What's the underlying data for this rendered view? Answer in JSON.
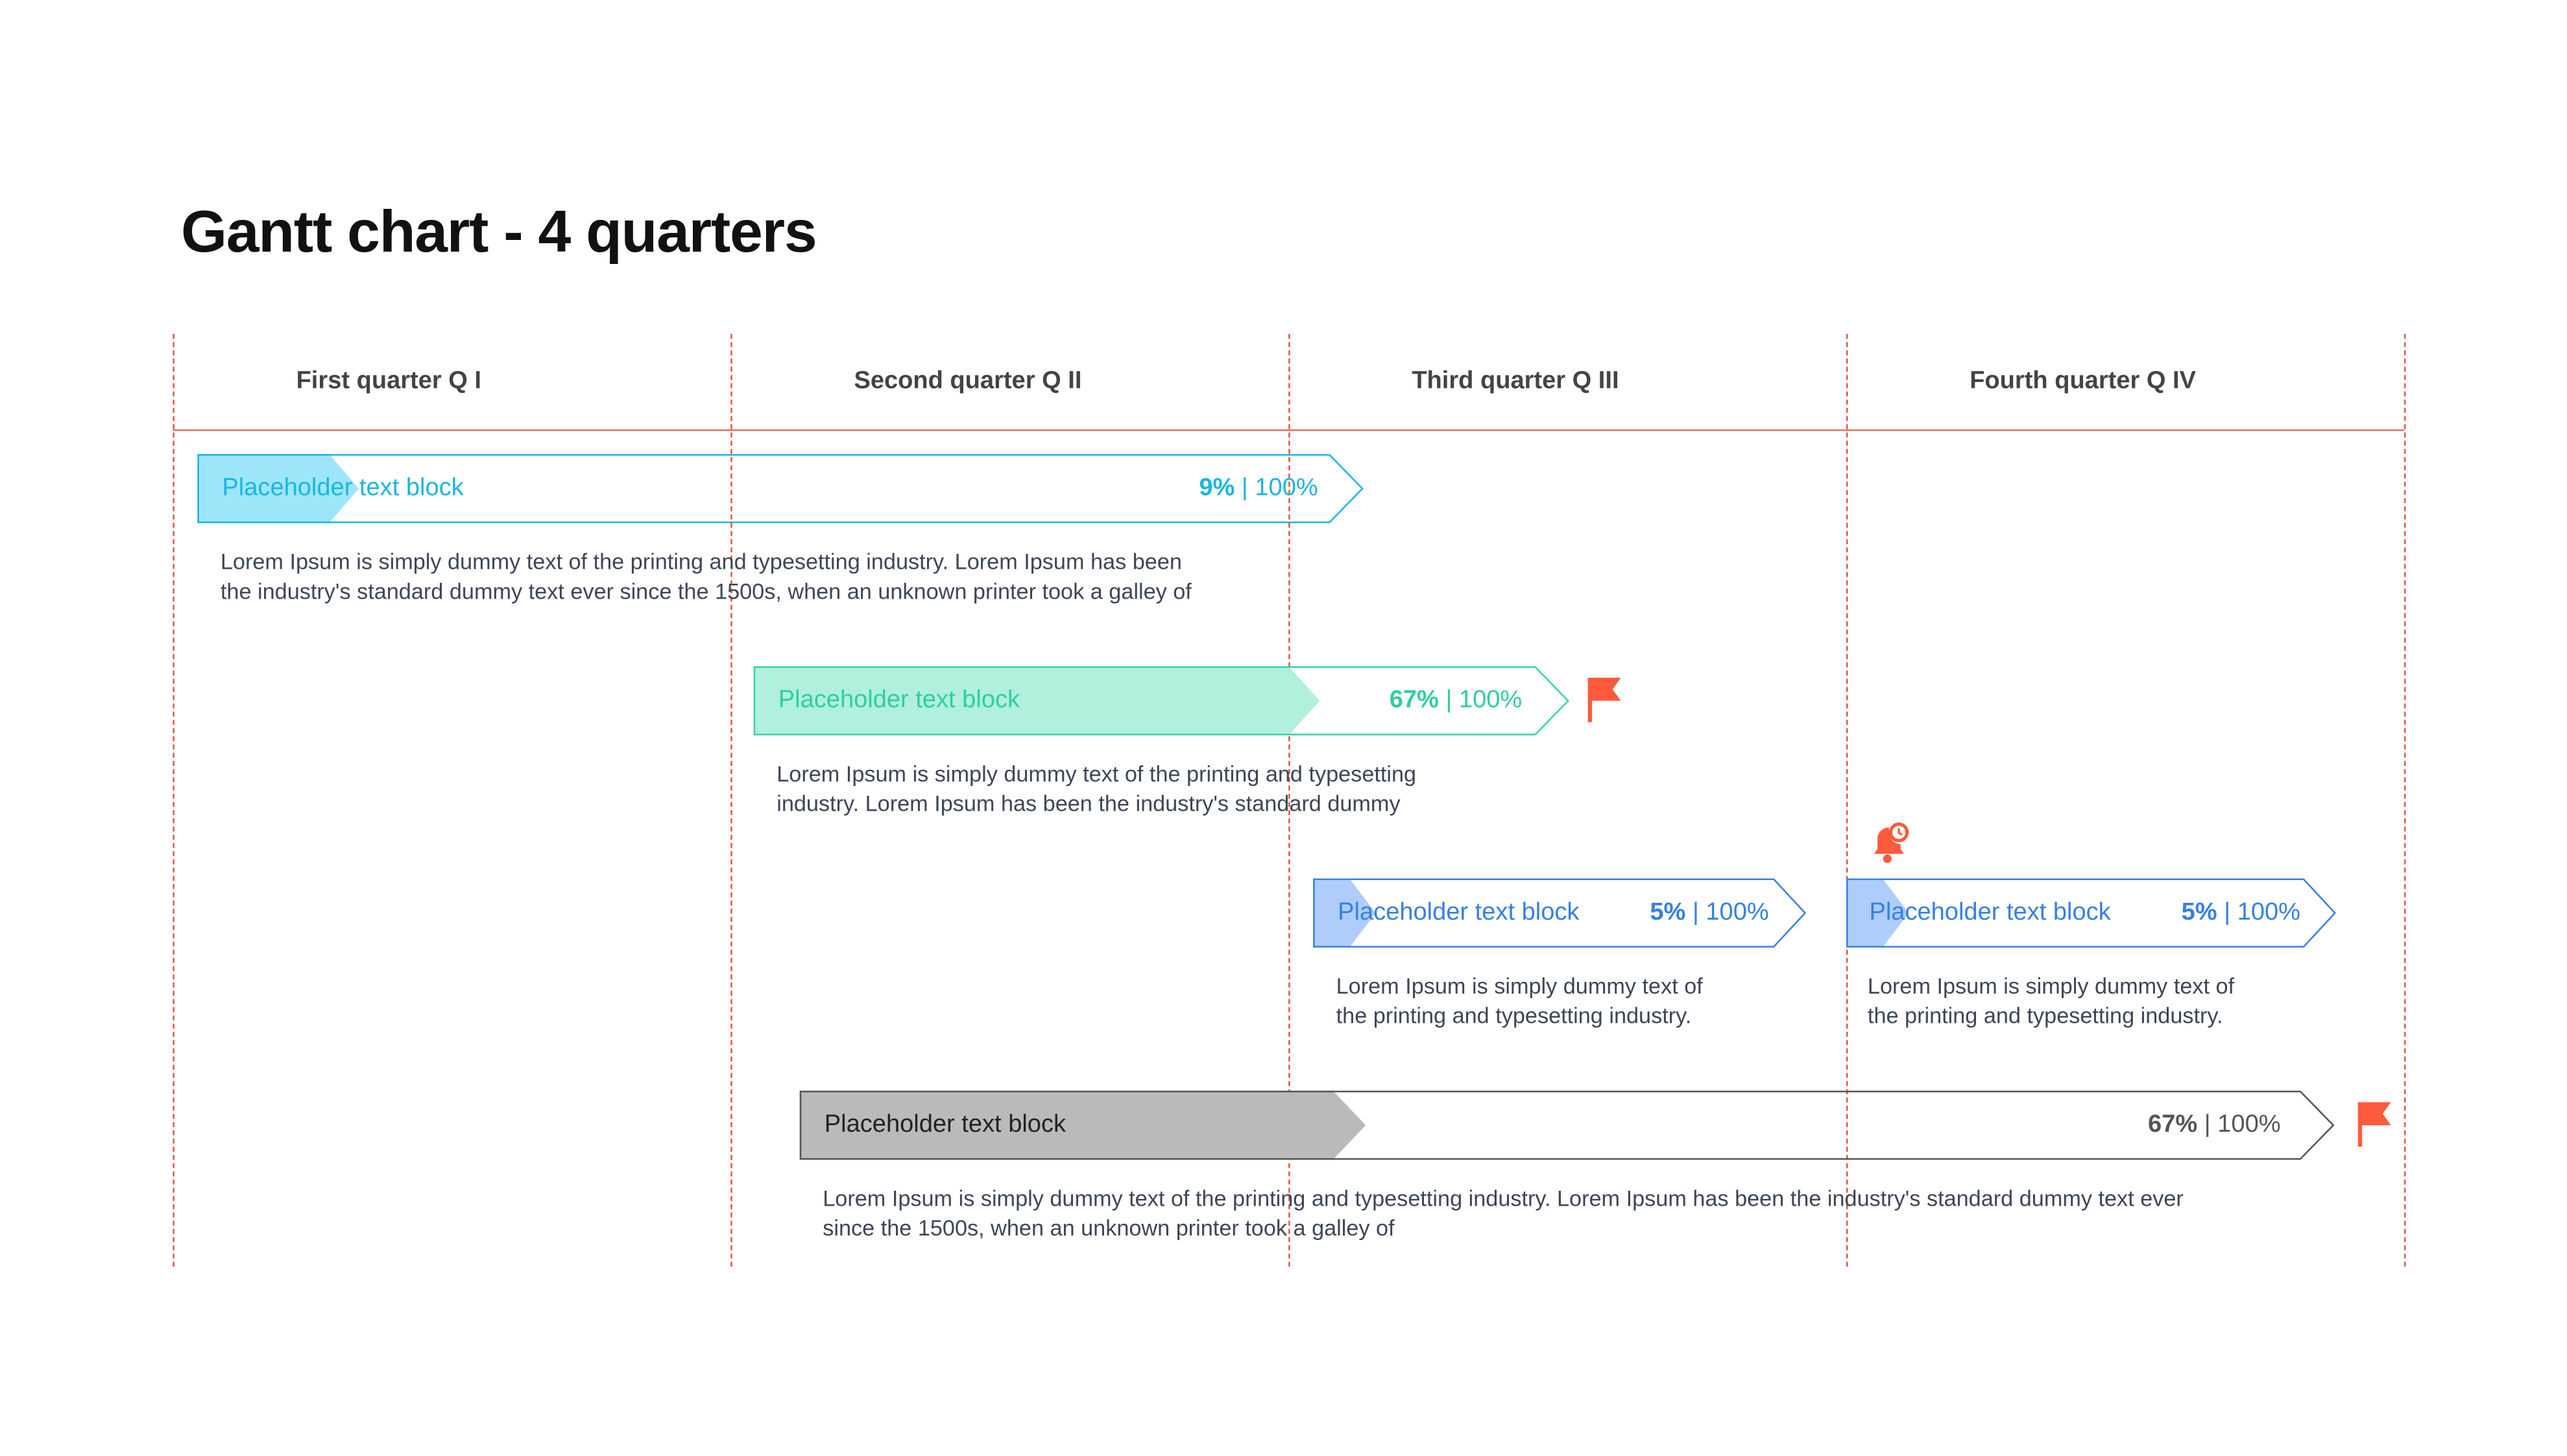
{
  "title": "Gantt chart - 4 quarters",
  "quarters": [
    {
      "label": "First quarter Q I"
    },
    {
      "label": "Second quarter Q II"
    },
    {
      "label": "Third quarter Q III"
    },
    {
      "label": "Fourth quarter Q IV"
    }
  ],
  "colors": {
    "divider": "#e8553f",
    "header_line": "#d9775f",
    "cyan": "#1ab6e0",
    "green": "#2fcf9d",
    "blue": "#3480e6",
    "gray": "#555555",
    "marker": "#ff5a3c"
  },
  "tasks": [
    {
      "label": "Placeholder text block",
      "progress": "9%",
      "total": "100%",
      "separator": " | ",
      "color": "cyan",
      "description_lines": [
        "Lorem Ipsum is simply dummy text of the printing and typesetting industry. Lorem Ipsum has been",
        "the industry's standard dummy text ever since the 1500s, when an unknown printer took a galley of"
      ],
      "marker": null
    },
    {
      "label": "Placeholder text block",
      "progress": "67%",
      "total": "100%",
      "separator": " | ",
      "color": "green",
      "description_lines": [
        "Lorem Ipsum is simply dummy text of the printing and typesetting",
        "industry. Lorem Ipsum has been the industry's standard dummy"
      ],
      "marker": "flag-icon"
    },
    {
      "label": "Placeholder text block",
      "progress": "5%",
      "total": "100%",
      "separator": " | ",
      "color": "blue",
      "description_lines": [
        "Lorem Ipsum is simply dummy text of",
        "the printing and typesetting industry."
      ],
      "marker": null
    },
    {
      "label": "Placeholder text block",
      "progress": "5%",
      "total": "100%",
      "separator": " | ",
      "color": "blue",
      "description_lines": [
        "Lorem Ipsum is simply dummy text of",
        "the printing and typesetting industry."
      ],
      "marker": "bell-clock-icon"
    },
    {
      "label": "Placeholder text block",
      "progress": "67%",
      "total": "100%",
      "separator": " | ",
      "color": "gray",
      "description_lines": [
        "Lorem Ipsum is simply dummy text of the printing and typesetting industry. Lorem Ipsum has been the industry's standard dummy text ever",
        "since the 1500s, when an unknown printer took a galley of"
      ],
      "marker": "flag-icon"
    }
  ]
}
